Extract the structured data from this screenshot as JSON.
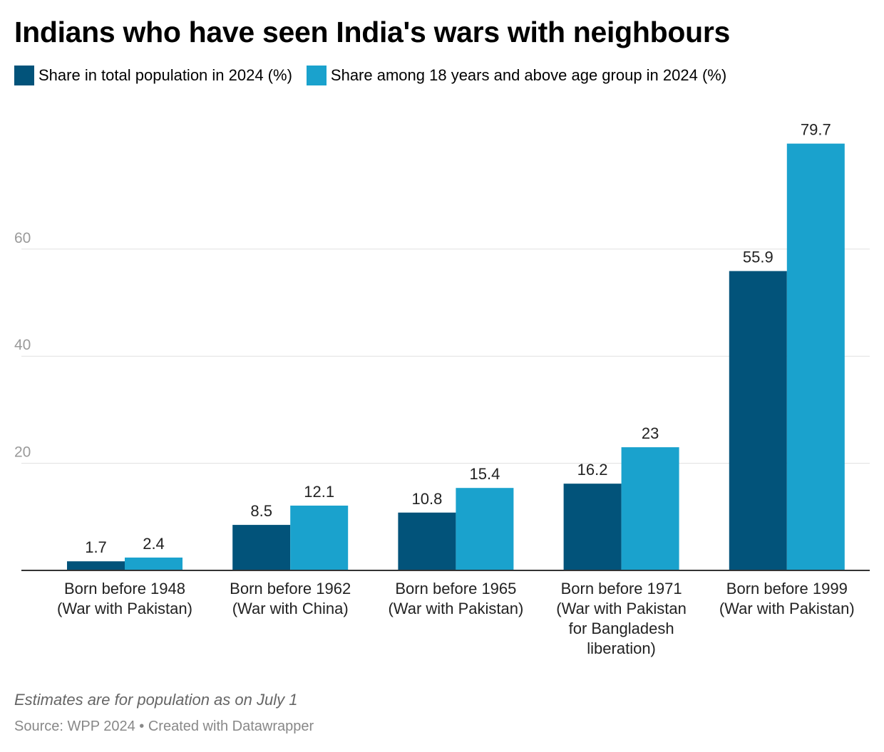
{
  "title": "Indians who have seen India's wars with neighbours",
  "notes": "Estimates are for population as on July 1",
  "source": "Source: WPP 2024 • Created with Datawrapper",
  "colors": {
    "series1": "#02537a",
    "series2": "#1aa2cd",
    "grid": "#e0e0e0",
    "axis_text": "#9a9a9a"
  },
  "chart_data": {
    "type": "bar",
    "categories": [
      [
        "Born before 1948",
        "(War with Pakistan)"
      ],
      [
        "Born before 1962",
        "(War with China)"
      ],
      [
        "Born before 1965",
        "(War with Pakistan)"
      ],
      [
        "Born before 1971",
        "(War with Pakistan",
        "for Bangladesh",
        "liberation)"
      ],
      [
        "Born before 1999",
        "(War with Pakistan)"
      ]
    ],
    "series": [
      {
        "name": "Share in total population in 2024 (%)",
        "values": [
          1.7,
          8.5,
          10.8,
          16.2,
          55.9
        ]
      },
      {
        "name": "Share among 18 years and above age group in 2024 (%)",
        "values": [
          2.4,
          12.1,
          15.4,
          23,
          79.7
        ]
      }
    ],
    "ylim": [
      0,
      80
    ],
    "yticks": [
      20,
      40,
      60
    ],
    "grid": true,
    "legend_position": "top-left"
  }
}
